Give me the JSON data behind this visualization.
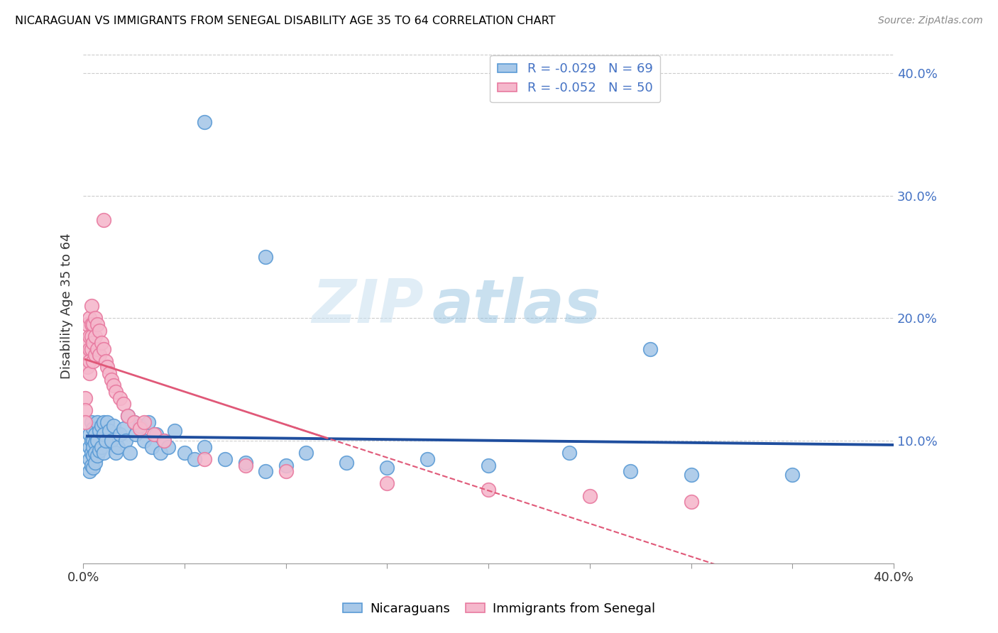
{
  "title": "NICARAGUAN VS IMMIGRANTS FROM SENEGAL DISABILITY AGE 35 TO 64 CORRELATION CHART",
  "source": "Source: ZipAtlas.com",
  "ylabel": "Disability Age 35 to 64",
  "xlim": [
    0.0,
    0.4
  ],
  "ylim": [
    0.0,
    0.42
  ],
  "yticks_right": [
    0.1,
    0.2,
    0.3,
    0.4
  ],
  "yticklabels_right": [
    "10.0%",
    "20.0%",
    "30.0%",
    "40.0%"
  ],
  "legend_blue_r": "R = -0.029",
  "legend_blue_n": "N = 69",
  "legend_pink_r": "R = -0.052",
  "legend_pink_n": "N = 50",
  "blue_color": "#a8c8e8",
  "pink_color": "#f5b8cc",
  "blue_edge": "#5b9bd5",
  "pink_edge": "#e87aa0",
  "trendline_blue_color": "#1f4e9e",
  "trendline_pink_color": "#e05878",
  "watermark_zip": "ZIP",
  "watermark_atlas": "atlas",
  "blue_x": [
    0.003,
    0.003,
    0.003,
    0.003,
    0.004,
    0.004,
    0.004,
    0.004,
    0.005,
    0.005,
    0.005,
    0.005,
    0.005,
    0.006,
    0.006,
    0.006,
    0.006,
    0.007,
    0.007,
    0.007,
    0.008,
    0.008,
    0.009,
    0.009,
    0.01,
    0.01,
    0.01,
    0.011,
    0.012,
    0.013,
    0.014,
    0.015,
    0.016,
    0.017,
    0.018,
    0.02,
    0.021,
    0.022,
    0.023,
    0.025,
    0.026,
    0.028,
    0.03,
    0.032,
    0.034,
    0.036,
    0.038,
    0.04,
    0.042,
    0.045,
    0.05,
    0.055,
    0.06,
    0.07,
    0.08,
    0.09,
    0.1,
    0.11,
    0.13,
    0.15,
    0.17,
    0.2,
    0.24,
    0.27,
    0.3,
    0.35,
    0.28,
    0.09,
    0.06
  ],
  "blue_y": [
    0.105,
    0.095,
    0.085,
    0.075,
    0.115,
    0.1,
    0.09,
    0.08,
    0.11,
    0.1,
    0.095,
    0.088,
    0.078,
    0.105,
    0.098,
    0.09,
    0.082,
    0.115,
    0.1,
    0.088,
    0.108,
    0.092,
    0.112,
    0.095,
    0.115,
    0.105,
    0.09,
    0.1,
    0.115,
    0.108,
    0.1,
    0.112,
    0.09,
    0.095,
    0.105,
    0.11,
    0.1,
    0.12,
    0.09,
    0.115,
    0.105,
    0.112,
    0.1,
    0.115,
    0.095,
    0.105,
    0.09,
    0.1,
    0.095,
    0.108,
    0.09,
    0.085,
    0.095,
    0.085,
    0.082,
    0.075,
    0.08,
    0.09,
    0.082,
    0.078,
    0.085,
    0.08,
    0.09,
    0.075,
    0.072,
    0.072,
    0.175,
    0.25,
    0.36
  ],
  "pink_x": [
    0.001,
    0.001,
    0.001,
    0.002,
    0.002,
    0.002,
    0.002,
    0.003,
    0.003,
    0.003,
    0.003,
    0.003,
    0.004,
    0.004,
    0.004,
    0.004,
    0.005,
    0.005,
    0.005,
    0.006,
    0.006,
    0.006,
    0.007,
    0.007,
    0.008,
    0.008,
    0.009,
    0.01,
    0.011,
    0.012,
    0.013,
    0.014,
    0.015,
    0.016,
    0.018,
    0.02,
    0.022,
    0.025,
    0.028,
    0.03,
    0.035,
    0.04,
    0.06,
    0.08,
    0.1,
    0.15,
    0.2,
    0.25,
    0.3,
    0.01
  ],
  "pink_y": [
    0.135,
    0.125,
    0.115,
    0.195,
    0.18,
    0.17,
    0.16,
    0.2,
    0.185,
    0.175,
    0.165,
    0.155,
    0.21,
    0.195,
    0.185,
    0.175,
    0.195,
    0.18,
    0.165,
    0.2,
    0.185,
    0.17,
    0.195,
    0.175,
    0.19,
    0.17,
    0.18,
    0.175,
    0.165,
    0.16,
    0.155,
    0.15,
    0.145,
    0.14,
    0.135,
    0.13,
    0.12,
    0.115,
    0.11,
    0.115,
    0.105,
    0.1,
    0.085,
    0.08,
    0.075,
    0.065,
    0.06,
    0.055,
    0.05,
    0.28
  ]
}
